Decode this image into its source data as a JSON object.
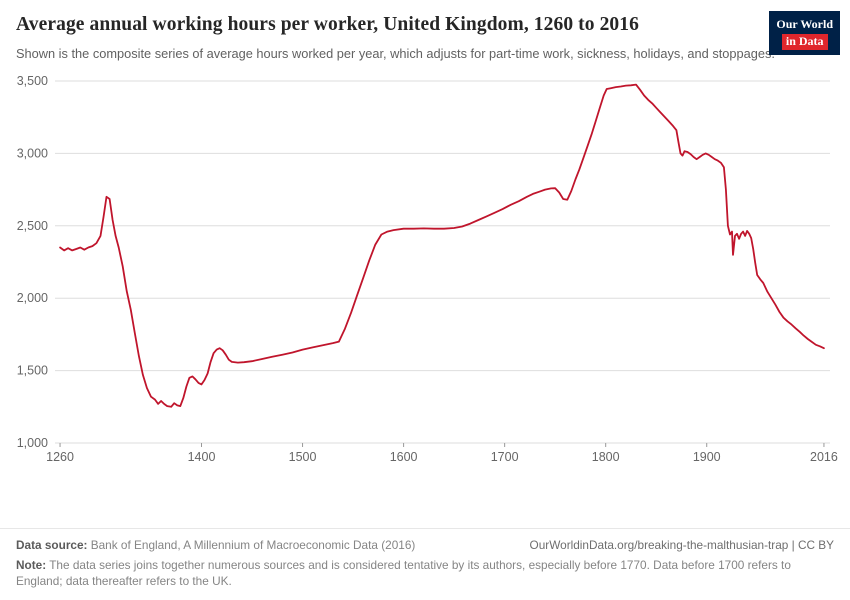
{
  "header": {
    "title": "Average annual working hours per worker, United Kingdom, 1260 to 2016",
    "subtitle": "Shown is the composite series of average hours worked per year, which adjusts for part-time work, sickness, holidays, and stoppages.",
    "logo": {
      "line1": "Our World",
      "line2": "in Data"
    }
  },
  "chart_data": {
    "type": "line",
    "title": "Average annual working hours per worker, United Kingdom, 1260 to 2016",
    "xlabel": "",
    "ylabel": "",
    "xlim": [
      1255,
      2022
    ],
    "ylim": [
      1000,
      3500
    ],
    "grid": "horizontal",
    "x_ticks": [
      1260,
      1400,
      1500,
      1600,
      1700,
      1800,
      1900,
      2016
    ],
    "x_tick_labels": [
      "1260",
      "1400",
      "1500",
      "1600",
      "1700",
      "1800",
      "1900",
      "2016"
    ],
    "y_ticks": [
      1000,
      1500,
      2000,
      2500,
      3000,
      3500
    ],
    "y_tick_labels": [
      "1,000",
      "1,500",
      "2,000",
      "2,500",
      "3,000",
      "3,500"
    ],
    "series": [
      {
        "name": "United Kingdom",
        "color": "#C0152C",
        "points": [
          [
            1260,
            2350
          ],
          [
            1264,
            2330
          ],
          [
            1268,
            2345
          ],
          [
            1272,
            2330
          ],
          [
            1276,
            2340
          ],
          [
            1280,
            2350
          ],
          [
            1284,
            2335
          ],
          [
            1288,
            2350
          ],
          [
            1292,
            2360
          ],
          [
            1296,
            2380
          ],
          [
            1300,
            2430
          ],
          [
            1303,
            2560
          ],
          [
            1306,
            2700
          ],
          [
            1309,
            2685
          ],
          [
            1312,
            2540
          ],
          [
            1315,
            2430
          ],
          [
            1318,
            2350
          ],
          [
            1322,
            2220
          ],
          [
            1326,
            2050
          ],
          [
            1330,
            1920
          ],
          [
            1334,
            1760
          ],
          [
            1338,
            1600
          ],
          [
            1342,
            1470
          ],
          [
            1346,
            1380
          ],
          [
            1350,
            1320
          ],
          [
            1354,
            1300
          ],
          [
            1357,
            1270
          ],
          [
            1360,
            1290
          ],
          [
            1363,
            1270
          ],
          [
            1366,
            1255
          ],
          [
            1370,
            1250
          ],
          [
            1373,
            1275
          ],
          [
            1376,
            1260
          ],
          [
            1379,
            1255
          ],
          [
            1382,
            1310
          ],
          [
            1385,
            1390
          ],
          [
            1388,
            1450
          ],
          [
            1391,
            1460
          ],
          [
            1394,
            1440
          ],
          [
            1397,
            1415
          ],
          [
            1400,
            1405
          ],
          [
            1403,
            1435
          ],
          [
            1406,
            1480
          ],
          [
            1409,
            1560
          ],
          [
            1412,
            1620
          ],
          [
            1415,
            1645
          ],
          [
            1418,
            1655
          ],
          [
            1421,
            1640
          ],
          [
            1424,
            1610
          ],
          [
            1427,
            1575
          ],
          [
            1430,
            1560
          ],
          [
            1436,
            1555
          ],
          [
            1442,
            1558
          ],
          [
            1450,
            1565
          ],
          [
            1460,
            1580
          ],
          [
            1470,
            1595
          ],
          [
            1480,
            1610
          ],
          [
            1490,
            1625
          ],
          [
            1500,
            1645
          ],
          [
            1510,
            1660
          ],
          [
            1520,
            1675
          ],
          [
            1530,
            1690
          ],
          [
            1536,
            1700
          ],
          [
            1542,
            1790
          ],
          [
            1548,
            1900
          ],
          [
            1554,
            2020
          ],
          [
            1560,
            2140
          ],
          [
            1566,
            2260
          ],
          [
            1572,
            2370
          ],
          [
            1578,
            2440
          ],
          [
            1584,
            2460
          ],
          [
            1590,
            2470
          ],
          [
            1600,
            2480
          ],
          [
            1610,
            2480
          ],
          [
            1620,
            2482
          ],
          [
            1630,
            2480
          ],
          [
            1640,
            2480
          ],
          [
            1650,
            2485
          ],
          [
            1658,
            2495
          ],
          [
            1666,
            2515
          ],
          [
            1674,
            2540
          ],
          [
            1682,
            2565
          ],
          [
            1690,
            2590
          ],
          [
            1698,
            2615
          ],
          [
            1706,
            2645
          ],
          [
            1714,
            2670
          ],
          [
            1722,
            2700
          ],
          [
            1728,
            2720
          ],
          [
            1734,
            2735
          ],
          [
            1740,
            2750
          ],
          [
            1746,
            2758
          ],
          [
            1750,
            2760
          ],
          [
            1754,
            2730
          ],
          [
            1758,
            2685
          ],
          [
            1762,
            2680
          ],
          [
            1766,
            2740
          ],
          [
            1770,
            2820
          ],
          [
            1774,
            2890
          ],
          [
            1778,
            2970
          ],
          [
            1782,
            3050
          ],
          [
            1786,
            3130
          ],
          [
            1790,
            3220
          ],
          [
            1794,
            3310
          ],
          [
            1798,
            3400
          ],
          [
            1801,
            3445
          ],
          [
            1805,
            3450
          ],
          [
            1810,
            3458
          ],
          [
            1815,
            3462
          ],
          [
            1820,
            3468
          ],
          [
            1825,
            3470
          ],
          [
            1830,
            3475
          ],
          [
            1834,
            3440
          ],
          [
            1838,
            3400
          ],
          [
            1842,
            3370
          ],
          [
            1846,
            3345
          ],
          [
            1850,
            3315
          ],
          [
            1854,
            3285
          ],
          [
            1858,
            3255
          ],
          [
            1862,
            3225
          ],
          [
            1866,
            3195
          ],
          [
            1870,
            3160
          ],
          [
            1872,
            3080
          ],
          [
            1874,
            3000
          ],
          [
            1876,
            2985
          ],
          [
            1878,
            3015
          ],
          [
            1881,
            3010
          ],
          [
            1884,
            2995
          ],
          [
            1887,
            2975
          ],
          [
            1890,
            2960
          ],
          [
            1893,
            2975
          ],
          [
            1896,
            2990
          ],
          [
            1899,
            3000
          ],
          [
            1902,
            2990
          ],
          [
            1905,
            2975
          ],
          [
            1908,
            2960
          ],
          [
            1911,
            2950
          ],
          [
            1914,
            2935
          ],
          [
            1917,
            2905
          ],
          [
            1919,
            2750
          ],
          [
            1921,
            2500
          ],
          [
            1923,
            2440
          ],
          [
            1925,
            2460
          ],
          [
            1926,
            2300
          ],
          [
            1928,
            2430
          ],
          [
            1930,
            2445
          ],
          [
            1932,
            2410
          ],
          [
            1934,
            2445
          ],
          [
            1936,
            2460
          ],
          [
            1938,
            2430
          ],
          [
            1940,
            2465
          ],
          [
            1942,
            2445
          ],
          [
            1944,
            2415
          ],
          [
            1946,
            2340
          ],
          [
            1948,
            2245
          ],
          [
            1950,
            2160
          ],
          [
            1953,
            2130
          ],
          [
            1956,
            2105
          ],
          [
            1960,
            2045
          ],
          [
            1964,
            2000
          ],
          [
            1968,
            1955
          ],
          [
            1972,
            1905
          ],
          [
            1976,
            1865
          ],
          [
            1980,
            1840
          ],
          [
            1984,
            1818
          ],
          [
            1988,
            1792
          ],
          [
            1992,
            1768
          ],
          [
            1996,
            1742
          ],
          [
            2000,
            1718
          ],
          [
            2004,
            1698
          ],
          [
            2008,
            1678
          ],
          [
            2012,
            1668
          ],
          [
            2016,
            1655
          ]
        ]
      }
    ]
  },
  "footer": {
    "source_label": "Data source:",
    "source_text": " Bank of England, A Millennium of Macroeconomic Data (2016)",
    "attribution": "OurWorldinData.org/breaking-the-malthusian-trap | CC BY",
    "note_label": "Note:",
    "note_text": " The data series joins together numerous sources and is considered tentative by its authors, especially before 1770. Data before 1700 refers to England; data thereafter refers to the UK."
  }
}
